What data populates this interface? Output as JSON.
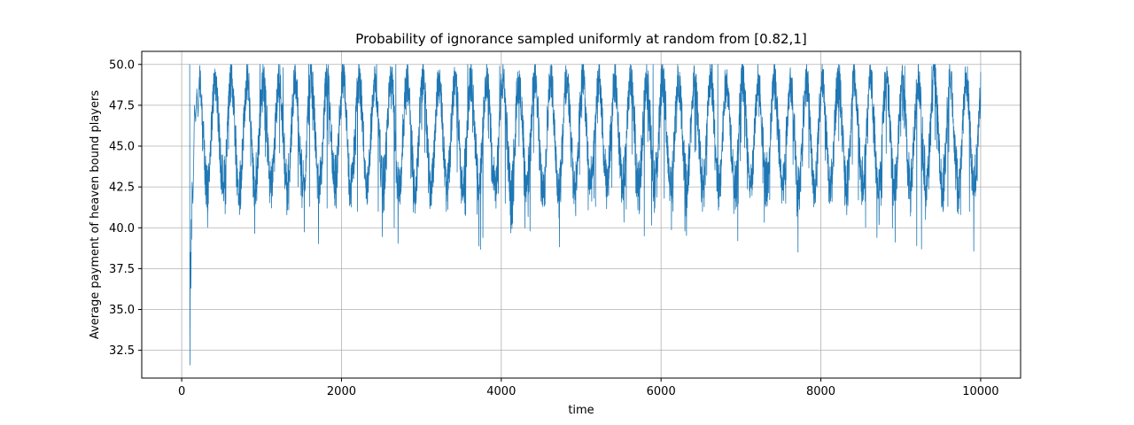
{
  "chart_data": {
    "type": "line",
    "title": "Probability of ignorance sampled uniformly at random from [0.82,1]",
    "xlabel": "time",
    "ylabel": "Average payment of heaven bound players",
    "xlim": [
      -500,
      10500
    ],
    "ylim": [
      30.8,
      50.8
    ],
    "x_ticks": [
      "0",
      "2000",
      "4000",
      "6000",
      "8000",
      "10000"
    ],
    "y_ticks": [
      "32.5",
      "35.0",
      "37.5",
      "40.0",
      "42.5",
      "45.0",
      "47.5",
      "50.0"
    ],
    "grid": true,
    "series_color": "#1f77b4",
    "series": [
      {
        "x_start": 100,
        "x_end": 10000,
        "initial": [
          [
            100,
            50.0
          ],
          [
            103,
            31.6
          ],
          [
            106,
            36.2
          ],
          [
            110,
            38.5
          ],
          [
            115,
            36.3
          ],
          [
            120,
            40.5
          ],
          [
            125,
            39.3
          ],
          [
            130,
            42.8
          ],
          [
            140,
            41.5
          ],
          [
            150,
            44.0
          ],
          [
            160,
            47.5
          ],
          [
            175,
            46.5
          ],
          [
            190,
            48.5
          ],
          [
            205,
            46.8
          ],
          [
            220,
            49.2
          ]
        ],
        "period": 200,
        "peak": 49.0,
        "trough_typical": 42.5,
        "spikes": [
          [
            2200,
            41.0
          ],
          [
            2460,
            41.0
          ],
          [
            2660,
            40.0
          ],
          [
            3770,
            39.4
          ],
          [
            4360,
            39.8
          ],
          [
            5790,
            39.5
          ],
          [
            6960,
            39.2
          ],
          [
            8730,
            40.4
          ],
          [
            9200,
            38.9
          ],
          [
            9260,
            38.7
          ],
          [
            9310,
            40.5
          ],
          [
            9860,
            41.0
          ],
          [
            1340,
            41.1
          ],
          [
            1600,
            41.3
          ],
          [
            1820,
            41.2
          ],
          [
            3500,
            41.5
          ],
          [
            4050,
            41.5
          ],
          [
            4520,
            41.3
          ],
          [
            5180,
            41.3
          ],
          [
            6040,
            41.8
          ],
          [
            7560,
            41.5
          ],
          [
            8140,
            41.6
          ],
          [
            8470,
            41.7
          ],
          [
            9590,
            41.3
          ]
        ],
        "top_spikes": [
          [
            980,
            50.0
          ],
          [
            1590,
            50.0
          ],
          [
            2440,
            50.0
          ],
          [
            2680,
            50.0
          ],
          [
            3580,
            50.0
          ],
          [
            5820,
            50.0
          ],
          [
            5900,
            50.0
          ],
          [
            6640,
            50.0
          ],
          [
            6710,
            50.0
          ],
          [
            9050,
            49.9
          ],
          [
            9390,
            49.9
          ],
          [
            1270,
            49.8
          ],
          [
            3980,
            49.9
          ]
        ]
      }
    ]
  }
}
